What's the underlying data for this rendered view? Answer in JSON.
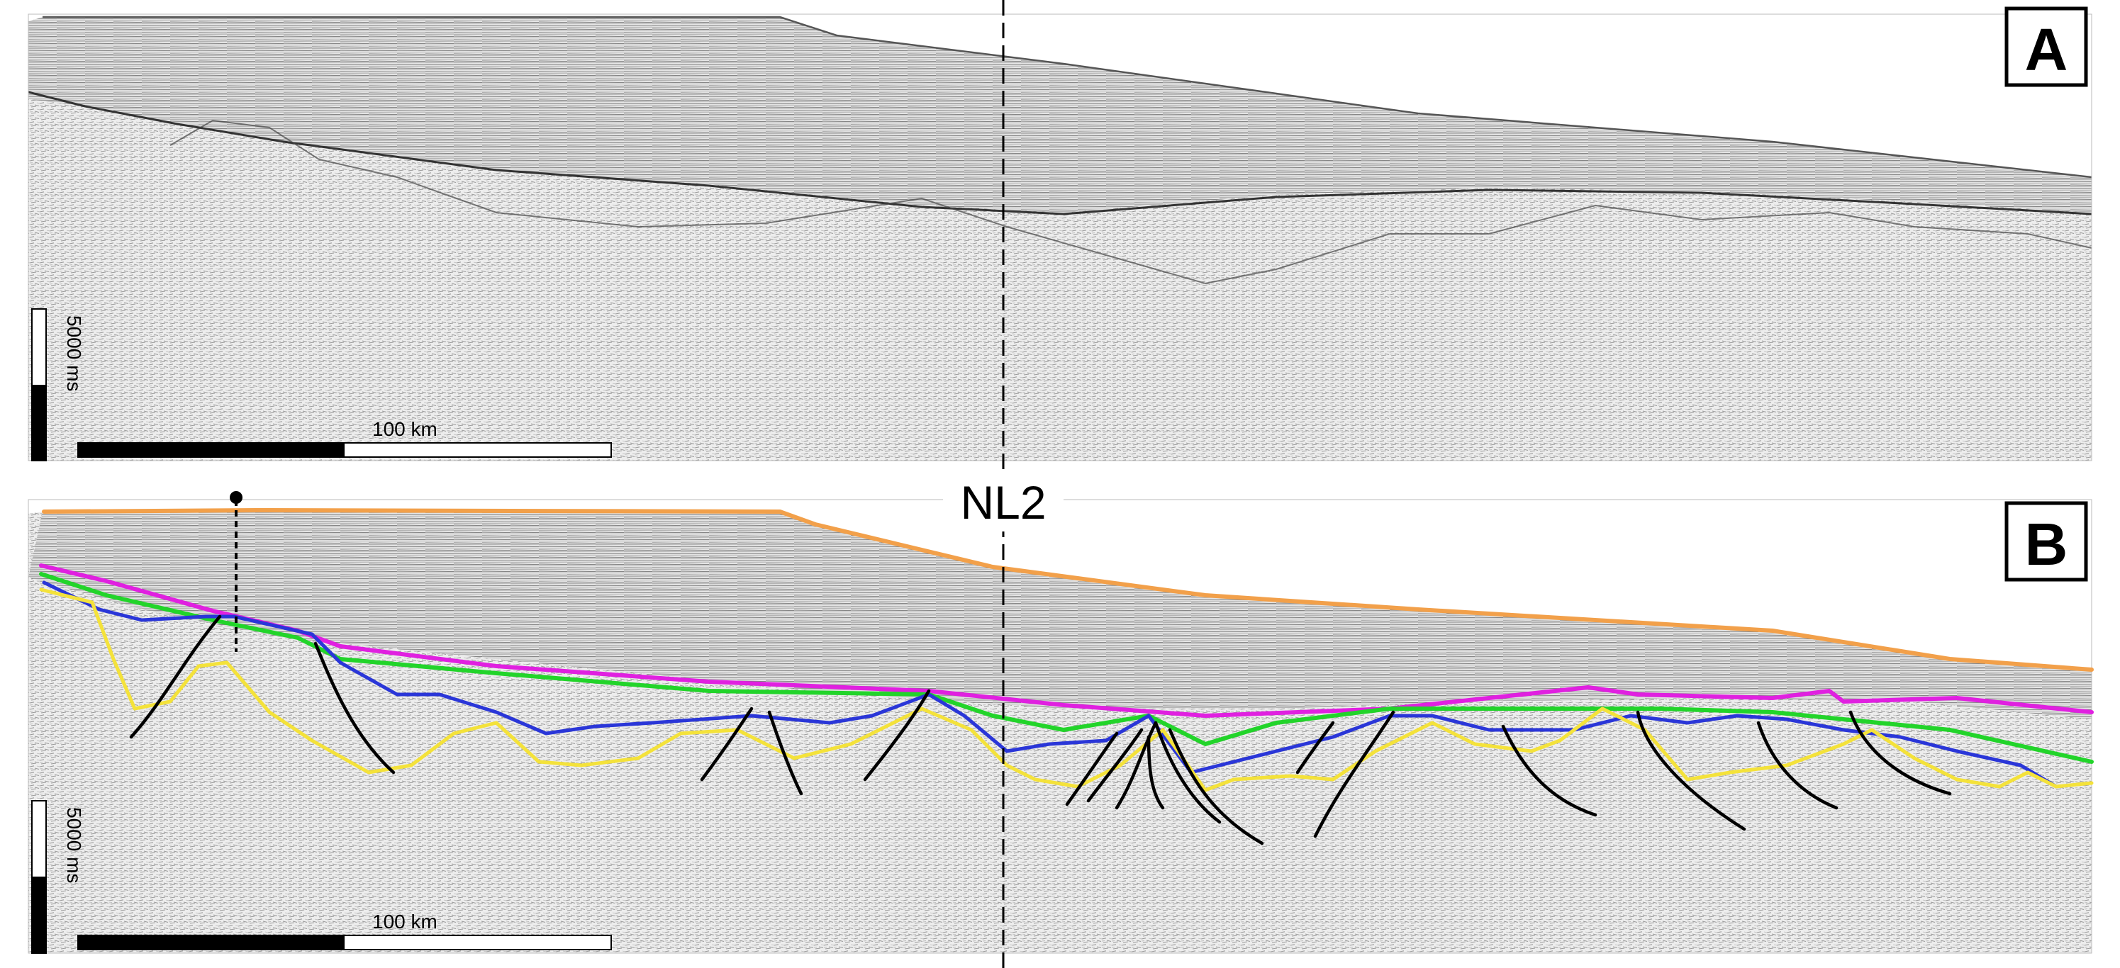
{
  "panels": [
    {
      "letter": "A",
      "interpreted": false
    },
    {
      "letter": "B",
      "interpreted": true
    }
  ],
  "line_label": "NL2",
  "scale_bar": {
    "horizontal_label": "100 km",
    "vertical_label": "5000 ms"
  },
  "colors": {
    "seafloor": "#f2a04a",
    "magenta_horizon": "#e020e0",
    "green_horizon": "#22d42a",
    "blue_horizon": "#2a36d8",
    "yellow_horizon": "#f4e23a",
    "faults": "#000000",
    "seismic_background": "#f2f2f2"
  }
}
